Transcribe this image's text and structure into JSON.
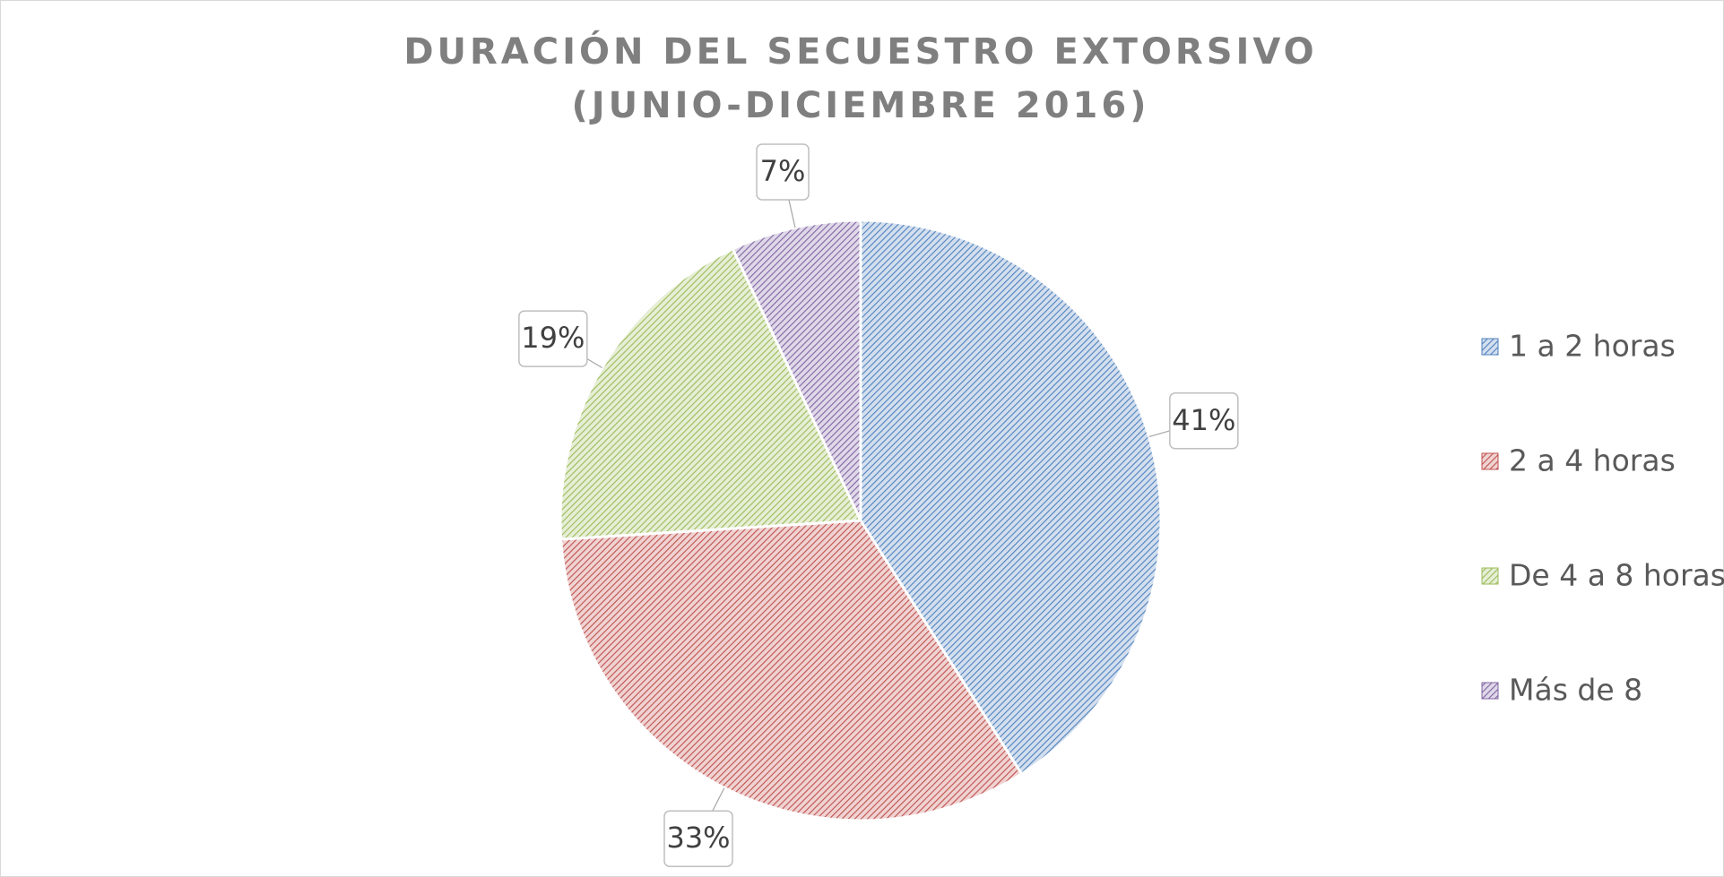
{
  "chart_data": {
    "type": "pie",
    "title": [
      "DURACIÓN DEL SECUESTRO EXTORSIVO",
      "(JUNIO-DICIEMBRE 2016)"
    ],
    "categories": [
      "1 a 2 horas",
      "2 a 4 horas",
      "De 4 a 8 horas",
      "Más de 8"
    ],
    "values": [
      41,
      33,
      19,
      7
    ],
    "value_labels": [
      "41%",
      "33%",
      "19%",
      "7%"
    ],
    "colors": [
      "#4f81bd",
      "#c0504d",
      "#9bbb59",
      "#8064a2"
    ],
    "legend": "right"
  }
}
